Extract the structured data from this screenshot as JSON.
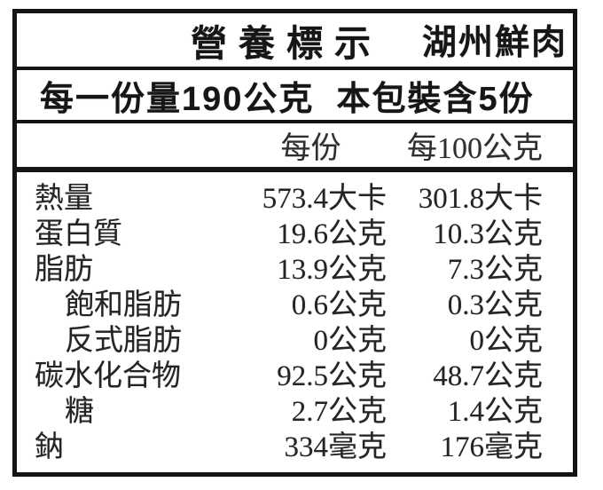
{
  "header": {
    "title": "營養標示",
    "product": "湖州鮮肉"
  },
  "serving_info": {
    "text": "每一份量190公克  本包裝含5份"
  },
  "columns": {
    "per_serving": "每份",
    "per_100g": "每100公克"
  },
  "rows": [
    {
      "label": "熱量",
      "indent": false,
      "per_serving": "573.4大卡",
      "per_100g": "301.8大卡"
    },
    {
      "label": "蛋白質",
      "indent": false,
      "per_serving": "19.6公克",
      "per_100g": "10.3公克"
    },
    {
      "label": "脂肪",
      "indent": false,
      "per_serving": "13.9公克",
      "per_100g": "7.3公克"
    },
    {
      "label": "飽和脂肪",
      "indent": true,
      "per_serving": "0.6公克",
      "per_100g": "0.3公克"
    },
    {
      "label": "反式脂肪",
      "indent": true,
      "per_serving": "0公克",
      "per_100g": "0公克"
    },
    {
      "label": "碳水化合物",
      "indent": false,
      "per_serving": "92.5公克",
      "per_100g": "48.7公克"
    },
    {
      "label": "糖",
      "indent": true,
      "per_serving": "2.7公克",
      "per_100g": "1.4公克"
    },
    {
      "label": "鈉",
      "indent": false,
      "per_serving": "334毫克",
      "per_100g": "176毫克"
    }
  ],
  "colors": {
    "border": "#141414",
    "text": "#242424",
    "background": "#ffffff"
  }
}
